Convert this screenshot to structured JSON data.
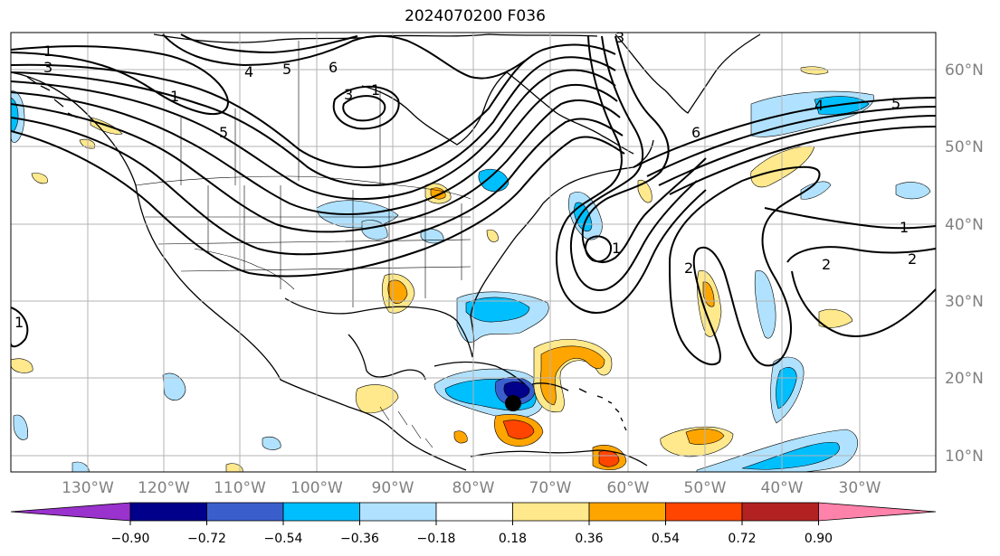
{
  "title": "2024070200 F036",
  "longitude_labels": [
    "130°W",
    "120°W",
    "110°W",
    "100°W",
    "90°W",
    "80°W",
    "70°W",
    "60°W",
    "50°W",
    "40°W",
    "30°W"
  ],
  "latitude_labels": [
    "60°N",
    "50°N",
    "40°N",
    "30°N",
    "20°N",
    "10°N"
  ],
  "colorbar": {
    "tick_labels": [
      "−0.90",
      "−0.72",
      "−0.54",
      "−0.36",
      "−0.18",
      "0.18",
      "0.36",
      "0.54",
      "0.72",
      "0.90"
    ],
    "colors": [
      "#9a32cd",
      "#00008b",
      "#3a5fcd",
      "#00bfff",
      "#b0e2ff",
      "#ffffff",
      "#ffe98c",
      "#ffa500",
      "#ff4500",
      "#b22222",
      "#ff82ab"
    ]
  },
  "contour_labels": [
    "1",
    "3",
    "4",
    "5",
    "6",
    "3",
    "1",
    "3",
    "1",
    "5",
    "4",
    "5",
    "6",
    "1",
    "2",
    "2",
    "2",
    "1",
    "1"
  ],
  "marker": {
    "name": "storm-center-marker",
    "color": "#000000"
  },
  "palette": {
    "neg_strong": "#00008b",
    "neg_med": "#3a5fcd",
    "neg_cyan": "#00bfff",
    "neg_light": "#b0e2ff",
    "pos_light": "#ffe98c",
    "pos_orange": "#ffa500",
    "pos_red": "#ff4500"
  }
}
